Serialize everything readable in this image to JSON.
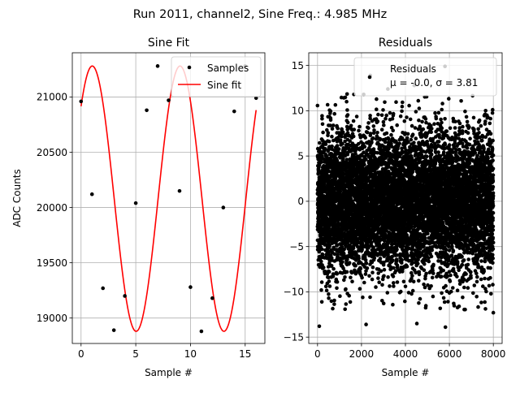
{
  "figure": {
    "suptitle": "Run 2011, channel2, Sine Freq.: 4.985 MHz"
  },
  "chart_data": [
    {
      "type": "scatter",
      "title": "Sine Fit",
      "xlabel": "Sample #",
      "ylabel": "ADC Counts",
      "xlim": [
        -0.8,
        16.8
      ],
      "ylim": [
        18770,
        21400
      ],
      "xticks": [
        0,
        5,
        10,
        15
      ],
      "yticks": [
        19000,
        19500,
        20000,
        20500,
        21000
      ],
      "grid": true,
      "legend_placement": "top-right",
      "series": [
        {
          "name": "Samples",
          "kind": "scatter",
          "color": "#000000",
          "x": [
            0,
            1,
            2,
            3,
            4,
            5,
            6,
            7,
            8,
            9,
            10,
            11,
            12,
            13,
            14,
            15,
            16
          ],
          "y": [
            20960,
            20120,
            19270,
            18890,
            19200,
            20040,
            20880,
            21280,
            20970,
            20150,
            19280,
            18880,
            19180,
            20000,
            20870,
            21280,
            20990
          ]
        },
        {
          "name": "Sine fit",
          "kind": "line",
          "color": "#ff0000",
          "model": {
            "offset": 20080,
            "amplitude": 1200,
            "period_samples": 8.025,
            "phase_rad": 0.8
          }
        }
      ]
    },
    {
      "type": "scatter",
      "title": "Residuals",
      "xlabel": "Sample #",
      "ylabel": "",
      "xlim": [
        -400,
        8400
      ],
      "ylim": [
        -15.7,
        16.4
      ],
      "xticks": [
        0,
        2000,
        4000,
        6000,
        8000
      ],
      "yticks": [
        -15,
        -10,
        -5,
        0,
        5,
        10,
        15
      ],
      "grid": true,
      "legend_placement": "top-right",
      "n_points": 8000,
      "series": [
        {
          "name": "Residuals",
          "legend_line2": "μ = -0.0, σ = 3.81",
          "color": "#000000",
          "mean": -0.0,
          "std": 3.81,
          "extremes": [
            [
              2210,
              -13.6
            ],
            [
              80,
              -13.8
            ],
            [
              5820,
              -13.9
            ],
            [
              4520,
              -13.5
            ],
            [
              8000,
              -12.3
            ],
            [
              3200,
              12.4
            ],
            [
              4400,
              12.8
            ],
            [
              5800,
              14.9
            ],
            [
              2400,
              13.9
            ]
          ]
        }
      ]
    }
  ]
}
